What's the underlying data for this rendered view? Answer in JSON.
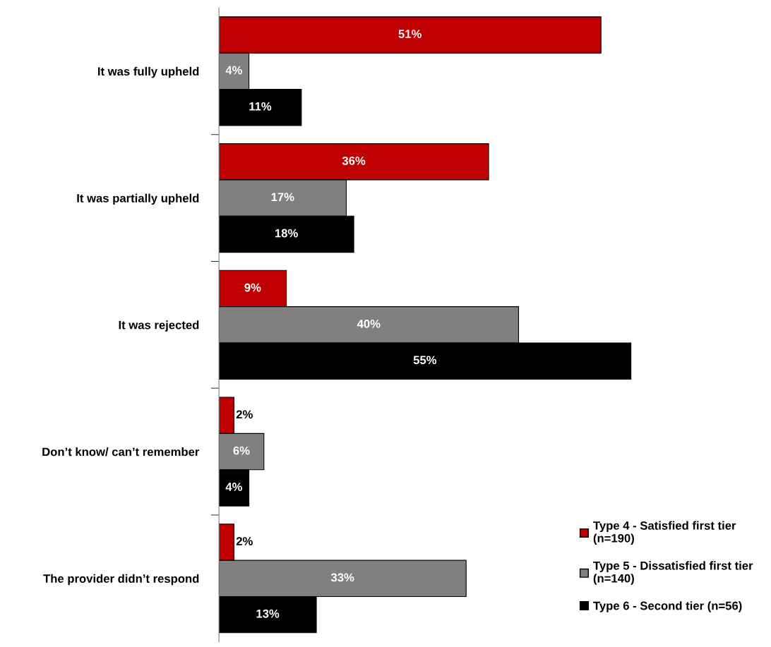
{
  "chart_data": {
    "type": "bar",
    "orientation": "horizontal",
    "categories": [
      "It was fully upheld",
      "It was partially upheld",
      "It was rejected",
      "Don’t know/ can’t remember",
      "The provider didn’t respond"
    ],
    "series": [
      {
        "name": "Type 4 - Satisfied first tier (n=190)",
        "color": "#c00000",
        "values": [
          51,
          36,
          9,
          2,
          2
        ],
        "value_labels": [
          "51%",
          "36%",
          "9%",
          "2%",
          "2%"
        ]
      },
      {
        "name": "Type 5 - Dissatisfied first tier (n=140)",
        "color": "#808080",
        "values": [
          4,
          17,
          40,
          6,
          33
        ],
        "value_labels": [
          "4%",
          "17%",
          "40%",
          "6%",
          "33%"
        ]
      },
      {
        "name": "Type 6 - Second tier (n=56)",
        "color": "#000000",
        "values": [
          11,
          18,
          55,
          4,
          13
        ],
        "value_labels": [
          "11%",
          "18%",
          "55%",
          "4%",
          "13%"
        ]
      }
    ],
    "legend": "bottom right",
    "grid": false,
    "tick_labels": "y"
  }
}
